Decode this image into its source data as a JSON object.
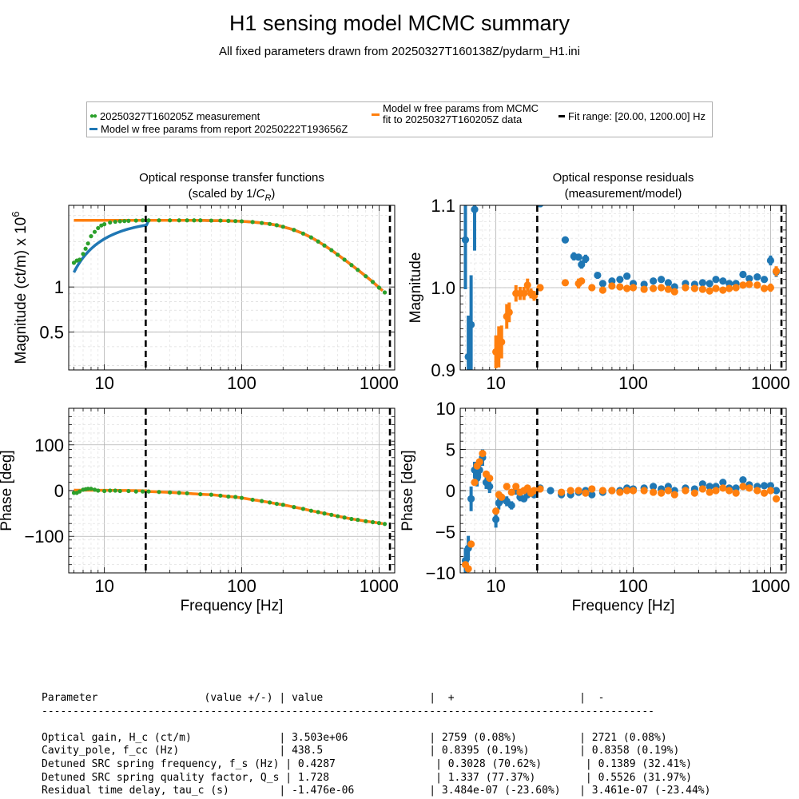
{
  "figure": {
    "title": "H1 sensing model MCMC summary",
    "subtitle": "All fixed parameters drawn from 20250327T160138Z/pydarm_H1.ini"
  },
  "legend": {
    "measurement": "20250327T160205Z measurement",
    "model_report": "Model w free params from report 20250222T193656Z",
    "model_mcmc_line1": "Model w free params from MCMC",
    "model_mcmc_line2": "fit to 20250327T160205Z data",
    "fit_range": "Fit range: [20.00, 1200.00] Hz"
  },
  "colors": {
    "measurement": "#2ca02c",
    "report": "#1f77b4",
    "mcmc": "#ff7f0e",
    "fit_range": "#000000"
  },
  "chart_data": [
    {
      "type": "line",
      "id": "tf_magnitude",
      "title_line1": "Optical response transfer functions",
      "title_line2_prefix": "(scaled by 1/",
      "title_line2_symbol": "C",
      "title_line2_sub": "R",
      "title_line2_suffix": ")",
      "ylabel": "Magnitude (ct/m) x 10",
      "ylabel_exp": "6",
      "xscale": "log",
      "yscale": "log",
      "xlim": [
        5.5,
        1300
      ],
      "ylim": [
        0.28,
        3.5
      ],
      "xticks": [
        10,
        100,
        1000
      ],
      "xtick_labels": [
        "10",
        "100",
        "1000"
      ],
      "yticks": [
        0.5,
        1
      ],
      "ytick_labels": [
        "0.5",
        "1"
      ],
      "fit_range": [
        20,
        1200
      ],
      "series": [
        {
          "name": "20250327T160205Z measurement",
          "kind": "points",
          "color": "#2ca02c",
          "x": [
            6,
            6.3,
            6.6,
            7,
            7.3,
            7.6,
            8,
            8.5,
            9,
            9.5,
            10,
            11,
            12,
            13,
            14,
            15,
            17,
            19,
            21,
            25,
            30,
            35,
            40,
            45,
            50,
            60,
            70,
            80,
            90,
            100,
            120,
            140,
            160,
            180,
            200,
            240,
            280,
            320,
            360,
            400,
            450,
            500,
            560,
            630,
            700,
            800,
            900,
            1000,
            1100
          ],
          "y": [
            1.45,
            1.5,
            1.52,
            1.66,
            1.8,
            1.95,
            2.18,
            2.33,
            2.47,
            2.57,
            2.62,
            2.69,
            2.72,
            2.74,
            2.75,
            2.76,
            2.77,
            2.78,
            2.78,
            2.78,
            2.78,
            2.78,
            2.78,
            2.78,
            2.78,
            2.77,
            2.77,
            2.76,
            2.75,
            2.74,
            2.71,
            2.67,
            2.63,
            2.58,
            2.52,
            2.4,
            2.27,
            2.14,
            2.01,
            1.89,
            1.76,
            1.64,
            1.52,
            1.4,
            1.3,
            1.18,
            1.08,
            0.99,
            0.92
          ]
        }
      ]
    },
    {
      "type": "scatter",
      "id": "residual_magnitude",
      "title_line1": "Optical response residuals",
      "title_line2": "(measurement/model)",
      "ylabel": "Magnitude",
      "xscale": "log",
      "xlim": [
        5.5,
        1300
      ],
      "ylim": [
        0.9,
        1.1
      ],
      "xticks": [
        10,
        100,
        1000
      ],
      "xtick_labels": [
        "10",
        "100",
        "1000"
      ],
      "yticks": [
        0.9,
        1.0,
        1.1
      ],
      "ytick_labels": [
        "0.9",
        "1.0",
        "1.1"
      ],
      "fit_range": [
        20,
        1200
      ],
      "series": [
        {
          "name": "Model w free params from report 20250222T193656Z",
          "color": "#1f77b4",
          "x": [
            6,
            6.3,
            6.6,
            7,
            21,
            32,
            37,
            40,
            42,
            45,
            55,
            60,
            70,
            80,
            90,
            100,
            120,
            140,
            160,
            180,
            200,
            240,
            280,
            320,
            360,
            400,
            450,
            500,
            560,
            630,
            700,
            800,
            900,
            1000,
            1100
          ],
          "y": [
            1.058,
            0.916,
            0.955,
            1.095,
            1.102,
            1.058,
            1.038,
            1.037,
            1.028,
            1.035,
            1.015,
            1.005,
            1.008,
            1.01,
            1.014,
            1.005,
            1.004,
            1.008,
            1.01,
            1.006,
            1.001,
            1.005,
            1.004,
            1.006,
            1.005,
            1.01,
            1.008,
            1.005,
            1.005,
            1.016,
            1.011,
            1.013,
            1.01,
            1.033,
            1.019
          ],
          "err": [
            0.06,
            0.05,
            0.06,
            0.05,
            0,
            0,
            0.005,
            0.004,
            0.005,
            0.005,
            0.003,
            0.003,
            0.003,
            0.003,
            0.003,
            0.003,
            0.003,
            0.003,
            0.003,
            0.003,
            0.003,
            0.003,
            0.003,
            0.003,
            0.003,
            0.003,
            0.003,
            0.003,
            0.003,
            0.004,
            0.004,
            0.004,
            0.004,
            0.006,
            0.006
          ]
        },
        {
          "name": "Model w free params from MCMC fit to 20250327T160205Z data",
          "color": "#ff7f0e",
          "x": [
            10,
            10.5,
            11,
            12,
            12.5,
            14,
            15,
            16,
            17,
            18,
            19,
            21,
            32,
            40,
            42,
            50,
            60,
            70,
            80,
            90,
            100,
            120,
            140,
            160,
            180,
            200,
            240,
            280,
            320,
            360,
            400,
            450,
            500,
            560,
            630,
            700,
            800,
            900,
            1000,
            1100
          ],
          "y": [
            0.922,
            0.928,
            0.934,
            0.965,
            0.97,
            0.993,
            0.993,
            0.993,
            1.003,
            0.993,
            0.99,
            1.0,
            1.006,
            1.005,
            1.008,
            1.0,
            0.997,
            1.002,
            1.001,
            0.999,
            1.0,
            0.998,
            0.999,
            1.0,
            0.998,
            0.995,
            1.0,
            0.999,
            0.998,
            0.996,
            0.999,
            0.997,
            0.999,
            1.0,
            1.003,
            1.004,
            1.003,
            0.999,
            1.0,
            1.02
          ],
          "err": [
            0.02,
            0.025,
            0.02,
            0.015,
            0.012,
            0.01,
            0.008,
            0.008,
            0.008,
            0.006,
            0.006,
            0.004,
            0.003,
            0.006,
            0.004,
            0.003,
            0.003,
            0.003,
            0.003,
            0.003,
            0.003,
            0.003,
            0.003,
            0.003,
            0.003,
            0.003,
            0.003,
            0.003,
            0.003,
            0.003,
            0.003,
            0.003,
            0.003,
            0.003,
            0.004,
            0.004,
            0.004,
            0.004,
            0.005,
            0.006
          ]
        }
      ]
    },
    {
      "type": "line",
      "id": "tf_phase",
      "ylabel": "Phase [deg]",
      "xlabel": "Frequency [Hz]",
      "xscale": "log",
      "xlim": [
        5.5,
        1300
      ],
      "ylim": [
        -180,
        180
      ],
      "xticks": [
        10,
        100,
        1000
      ],
      "xtick_labels": [
        "10",
        "100",
        "1000"
      ],
      "yticks": [
        -100,
        0,
        100
      ],
      "ytick_labels": [
        "−100",
        "0",
        "100"
      ],
      "fit_range": [
        20,
        1200
      ],
      "series": [
        {
          "name": "20250327T160205Z measurement",
          "kind": "points",
          "color": "#2ca02c",
          "x": [
            6,
            6.3,
            6.6,
            7,
            7.3,
            7.6,
            8,
            8.5,
            9,
            10,
            11,
            12,
            13,
            15,
            17,
            19,
            21,
            25,
            30,
            35,
            40,
            50,
            60,
            70,
            80,
            90,
            100,
            120,
            140,
            160,
            180,
            200,
            240,
            280,
            320,
            360,
            400,
            450,
            500,
            560,
            630,
            700,
            800,
            900,
            1000,
            1100
          ],
          "y": [
            -5,
            -5,
            -2,
            2,
            3,
            4,
            4,
            2,
            0,
            -1,
            0,
            0,
            -1,
            -1,
            -2,
            -2,
            -2,
            -3,
            -4,
            -5,
            -6,
            -8,
            -9,
            -11,
            -13,
            -14,
            -16,
            -20,
            -23,
            -26,
            -29,
            -31,
            -36,
            -40,
            -44,
            -47,
            -50,
            -53,
            -56,
            -59,
            -62,
            -64,
            -67,
            -69,
            -71,
            -73
          ]
        }
      ]
    },
    {
      "type": "scatter",
      "id": "residual_phase",
      "ylabel": "Phase [deg]",
      "xlabel": "Frequency [Hz]",
      "xscale": "log",
      "xlim": [
        5.5,
        1300
      ],
      "ylim": [
        -10,
        10
      ],
      "xticks": [
        10,
        100,
        1000
      ],
      "xtick_labels": [
        "10",
        "100",
        "1000"
      ],
      "yticks": [
        -10,
        -5,
        0,
        5,
        10
      ],
      "ytick_labels": [
        "−10",
        "−5",
        "0",
        "5",
        "10"
      ],
      "fit_range": [
        20,
        1200
      ],
      "series": [
        {
          "name": "Model w free params from report 20250222T193656Z",
          "color": "#1f77b4",
          "x": [
            6,
            6.3,
            6.6,
            7,
            7.3,
            7.6,
            8,
            8.5,
            9,
            10,
            10.5,
            11,
            12,
            13,
            14,
            15,
            16,
            17,
            18,
            19,
            21,
            25,
            30,
            35,
            40,
            45,
            50,
            60,
            70,
            80,
            90,
            100,
            120,
            140,
            160,
            180,
            200,
            240,
            280,
            320,
            360,
            400,
            450,
            500,
            560,
            630,
            700,
            800,
            900,
            1000,
            1100
          ],
          "y": [
            -8.5,
            -7,
            -1,
            2.5,
            1.5,
            2.5,
            4,
            1,
            0.5,
            -3.5,
            -1.5,
            -1,
            -1.3,
            -1.8,
            0,
            -0.8,
            -1,
            -0.5,
            -0.2,
            -0.5,
            0.3,
            0,
            -0.5,
            -0.5,
            -0.2,
            0,
            -0.5,
            -0.2,
            0,
            0,
            0.3,
            0.2,
            0.3,
            0.5,
            0.2,
            0.5,
            0,
            0.3,
            0.2,
            0.8,
            0.5,
            0.5,
            1,
            0.3,
            0.3,
            1.3,
            0.7,
            0.5,
            0.6,
            0.6,
            0
          ],
          "err": [
            1.5,
            1.5,
            1.5,
            1,
            1,
            1,
            1,
            0.8,
            0.8,
            1,
            0.8,
            0.6,
            0.6,
            0.5,
            0.5,
            0.5,
            0.4,
            0.4,
            0.4,
            0.3,
            0.3,
            0.3,
            0.3,
            0.3,
            0.3,
            0.3,
            0.3,
            0.2,
            0.2,
            0.2,
            0.2,
            0.2,
            0.2,
            0.2,
            0.2,
            0.2,
            0.2,
            0.2,
            0.2,
            0.2,
            0.2,
            0.2,
            0.2,
            0.2,
            0.2,
            0.3,
            0.3,
            0.3,
            0.3,
            0.4,
            0.4
          ]
        },
        {
          "name": "Model w free params from MCMC fit to 20250327T160205Z data",
          "color": "#ff7f0e",
          "x": [
            6,
            6.3,
            6.6,
            7,
            7.3,
            7.6,
            8,
            8.5,
            9,
            10,
            10.5,
            11,
            12,
            13,
            14,
            15,
            16,
            17,
            18,
            19,
            21,
            30,
            35,
            40,
            45,
            50,
            60,
            70,
            80,
            90,
            100,
            120,
            140,
            160,
            180,
            200,
            240,
            280,
            320,
            360,
            400,
            450,
            500,
            560,
            630,
            700,
            800,
            900,
            1000,
            1100
          ],
          "y": [
            -9,
            -9.5,
            -6.5,
            1,
            3,
            3.5,
            4.5,
            2,
            1.5,
            -2.5,
            -0.5,
            -0.8,
            0.5,
            -0.2,
            0.5,
            -0.2,
            0,
            0.3,
            -0.3,
            0,
            0.2,
            -0.2,
            0,
            0,
            -0.3,
            0.2,
            0,
            0,
            -0.2,
            0,
            0,
            0,
            -0.2,
            -0.3,
            0,
            -0.5,
            0,
            -0.3,
            0.2,
            -0.2,
            0,
            0.3,
            0,
            -0.3,
            0.5,
            0.3,
            0,
            -0.3,
            0,
            -1
          ]
        }
      ]
    }
  ],
  "table": {
    "header": "Parameter                 (value +/-) | value                 |  +                    |  -",
    "separator": "--------------------------------------------------------------------------------------------------",
    "rows": [
      "Optical gain, H_c (ct/m)              | 3.503e+06             | 2759 (0.08%)          | 2721 (0.08%)",
      "Cavity_pole, f_cc (Hz)                | 438.5                 | 0.8395 (0.19%)        | 0.8358 (0.19%)",
      "Detuned SRC spring frequency, f_s (Hz) | 0.4287                | 0.3028 (70.62%)       | 0.1389 (32.41%)",
      "Detuned SRC spring quality factor, Q_s | 1.728                 | 1.337 (77.37%)        | 0.5526 (31.97%)",
      "Residual time delay, tau_c (s)        | -1.476e-06            | 3.484e-07 (-23.60%)   | 3.461e-07 (-23.44%)"
    ]
  }
}
